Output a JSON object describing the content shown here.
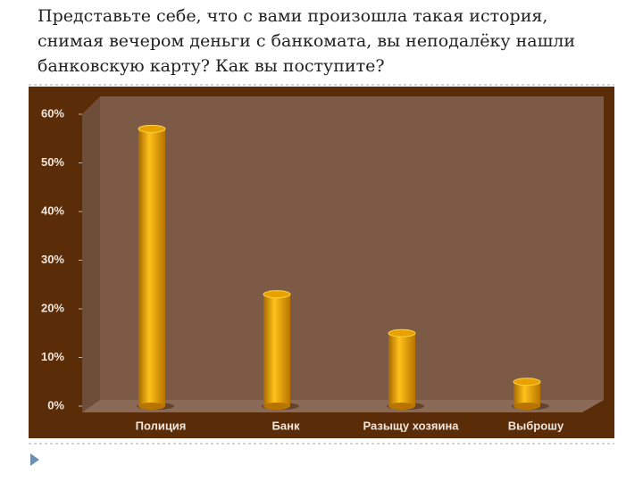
{
  "chart_data": {
    "type": "bar",
    "title": "Представьте себе, что с вами произошла такая история, снимая вечером деньги с банкомата, вы неподалёку нашли банковскую карту? Как вы поступите?",
    "categories": [
      "Полиция",
      "Банк",
      "Разыщу хозяина",
      "Выброшу"
    ],
    "values": [
      57,
      23,
      15,
      5
    ],
    "color": "#e8a200",
    "ylim": [
      0,
      60
    ],
    "yticks": [
      {
        "value": 0,
        "label": "0%"
      },
      {
        "value": 10,
        "label": "10%"
      },
      {
        "value": 20,
        "label": "20%"
      },
      {
        "value": 30,
        "label": "30%"
      },
      {
        "value": 40,
        "label": "40%"
      },
      {
        "value": 50,
        "label": "50%"
      },
      {
        "value": 60,
        "label": "60%"
      }
    ],
    "grid": false
  }
}
